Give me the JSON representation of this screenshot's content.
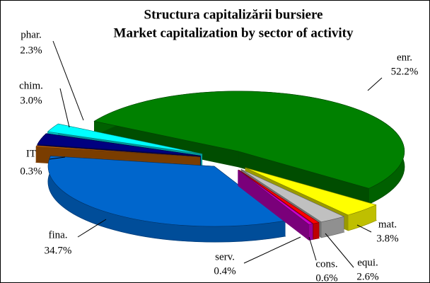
{
  "chart_data": {
    "type": "pie",
    "title": [
      "Structura capitalizării bursiere",
      "Market capitalization by sector of activity"
    ],
    "categories": [
      "enr.",
      "mat.",
      "equi.",
      "cons.",
      "serv.",
      "fina.",
      "IT",
      "chim.",
      "phar."
    ],
    "values": [
      52.2,
      3.8,
      2.6,
      0.6,
      0.4,
      34.7,
      0.3,
      3,
      2.3
    ],
    "value_labels": [
      "52.2%",
      "3.8%",
      "2.6%",
      "0.6%",
      "0.4%",
      "34.7%",
      "0.3%",
      "3.0%",
      "2.3%"
    ],
    "colors": [
      "#008000",
      "#ffff00",
      "#c0c0c0",
      "#ff0000",
      "#cc00cc",
      "#0066cc",
      "#cc6600",
      "#000080",
      "#00ffff"
    ]
  }
}
